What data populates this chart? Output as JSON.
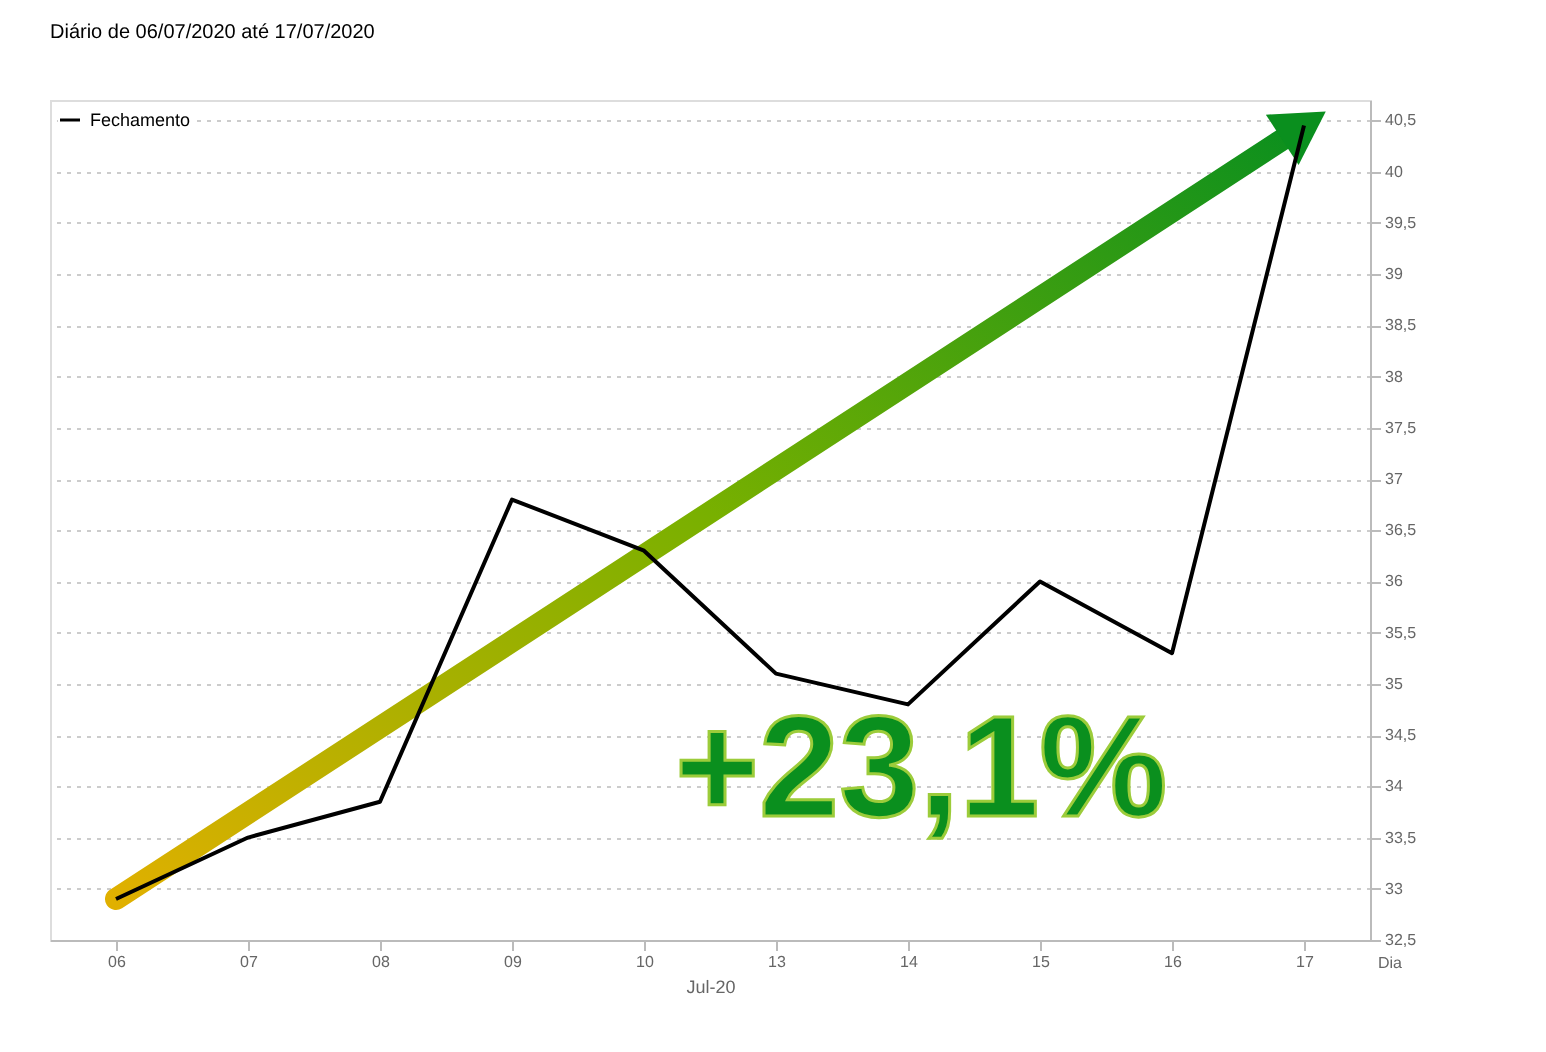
{
  "chart_data": {
    "type": "line",
    "title": "Diário de 06/07/2020 até 17/07/2020",
    "xlabel": "Jul-20",
    "categories": [
      "06",
      "07",
      "08",
      "09",
      "10",
      "13",
      "14",
      "15",
      "16",
      "17"
    ],
    "series": [
      {
        "name": "Fechamento",
        "color": "#000000",
        "values": [
          32.9,
          33.5,
          33.85,
          36.8,
          36.3,
          35.1,
          34.8,
          36.0,
          35.3,
          40.45
        ]
      }
    ],
    "ylim": [
      32.5,
      40.7
    ],
    "yticks": [
      {
        "value": 32.5,
        "label": "32,5"
      },
      33,
      {
        "value": 33.5,
        "label": "33,5"
      },
      34,
      {
        "value": 34.5,
        "label": "34,5"
      },
      35,
      {
        "value": 35.5,
        "label": "35,5"
      },
      36,
      {
        "value": 36.5,
        "label": "36,5"
      },
      37,
      {
        "value": 37.5,
        "label": "37,5"
      },
      38,
      {
        "value": 38.5,
        "label": "38,5"
      },
      39,
      {
        "value": 39.5,
        "label": "39,5"
      },
      40,
      {
        "value": 40.5,
        "label": "40,5"
      }
    ],
    "grid": "y",
    "legend": "top left",
    "marker": "none",
    "line_style": "solid",
    "annotations": [
      "+23,1%",
      "Dia"
    ]
  }
}
